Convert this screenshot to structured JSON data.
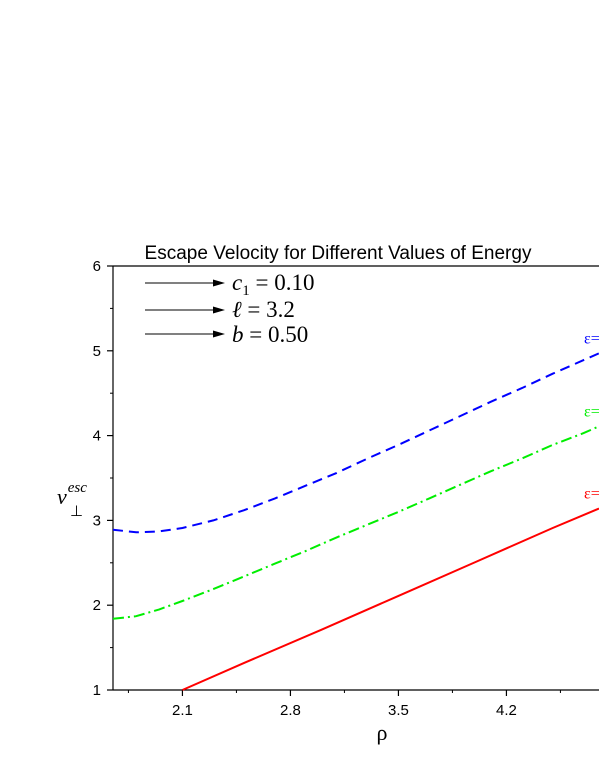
{
  "chart_data": {
    "type": "line",
    "title": "Escape Velocity for Different Values of Energy",
    "xlabel": "ρ",
    "ylabel": {
      "base": "v",
      "sub": "⊥",
      "sup": "esc"
    },
    "xlim": [
      1.65,
      4.8
    ],
    "ylim": [
      1,
      6
    ],
    "xticks": [
      2.1,
      2.8,
      3.5,
      4.2
    ],
    "xtick_labels": [
      "2.1",
      "2.8",
      "3.5",
      "4.2"
    ],
    "yticks": [
      1,
      2,
      3,
      4,
      5,
      6
    ],
    "ytick_labels": [
      "1",
      "2",
      "3",
      "4",
      "5",
      "6"
    ],
    "annotations": [
      {
        "lhs": "c",
        "sub": "1",
        "rhs": " = 0.10"
      },
      {
        "lhs": "ℓ",
        "sub": "",
        "rhs": " = 3.2"
      },
      {
        "lhs": "b",
        "sub": "",
        "rhs": " = 0.50"
      }
    ],
    "series": [
      {
        "name": "ε=",
        "color": "#0000ff",
        "style": "dashed",
        "x": [
          1.65,
          1.8,
          1.95,
          2.1,
          2.3,
          2.5,
          2.7,
          2.9,
          3.1,
          3.3,
          3.5,
          3.7,
          3.9,
          4.1,
          4.3,
          4.5,
          4.7,
          4.8
        ],
        "y": [
          2.89,
          2.86,
          2.87,
          2.91,
          3.0,
          3.12,
          3.26,
          3.41,
          3.56,
          3.73,
          3.89,
          4.06,
          4.23,
          4.4,
          4.56,
          4.73,
          4.89,
          4.97
        ]
      },
      {
        "name": "ε=",
        "color": "#00ee00",
        "style": "dashdot",
        "x": [
          1.65,
          1.8,
          1.95,
          2.1,
          2.3,
          2.5,
          2.7,
          2.9,
          3.1,
          3.3,
          3.5,
          3.7,
          3.9,
          4.1,
          4.3,
          4.5,
          4.7,
          4.8
        ],
        "y": [
          1.84,
          1.87,
          1.95,
          2.05,
          2.19,
          2.34,
          2.49,
          2.64,
          2.8,
          2.95,
          3.1,
          3.26,
          3.42,
          3.58,
          3.73,
          3.89,
          4.03,
          4.11
        ]
      },
      {
        "name": "ε=",
        "color": "#ff0000",
        "style": "solid",
        "x": [
          2.1,
          2.5,
          3.0,
          3.5,
          4.0,
          4.5,
          4.8
        ],
        "y": [
          1.0,
          1.32,
          1.71,
          2.11,
          2.51,
          2.91,
          3.14
        ]
      }
    ]
  }
}
